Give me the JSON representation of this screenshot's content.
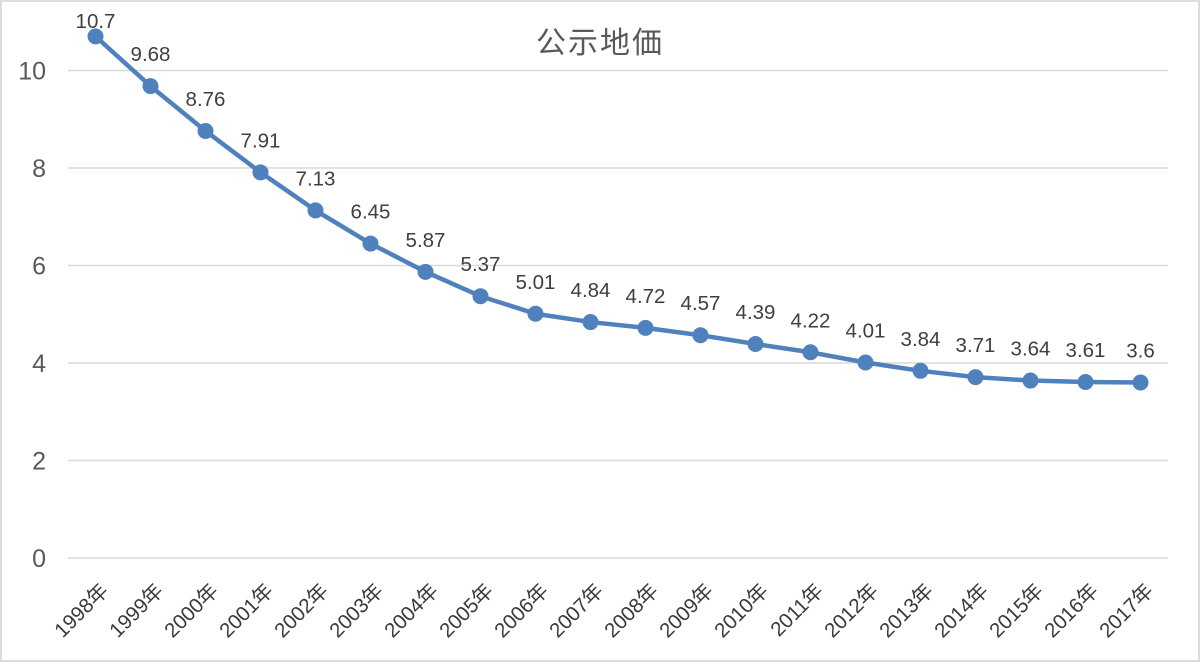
{
  "chart": {
    "title": "公示地価",
    "colors": {
      "line": "#4f81bd",
      "marker": "#4f81bd",
      "title": "#595959",
      "y_tick_label": "#595959",
      "x_tick_label": "#3a3a3a",
      "data_label": "#3f3f3f",
      "gridline": "#d9d9d9",
      "border": "#dcdcdc",
      "background": "#ffffff"
    }
  },
  "chart_data": {
    "type": "line",
    "title": "公示地価",
    "categories": [
      "1998年",
      "1999年",
      "2000年",
      "2001年",
      "2002年",
      "2003年",
      "2004年",
      "2005年",
      "2006年",
      "2007年",
      "2008年",
      "2009年",
      "2010年",
      "2011年",
      "2012年",
      "2013年",
      "2014年",
      "2015年",
      "2016年",
      "2017年"
    ],
    "values": [
      10.7,
      9.68,
      8.76,
      7.91,
      7.13,
      6.45,
      5.87,
      5.37,
      5.01,
      4.84,
      4.72,
      4.57,
      4.39,
      4.22,
      4.01,
      3.84,
      3.71,
      3.64,
      3.61,
      3.6
    ],
    "value_labels": [
      "10.7",
      "9.68",
      "8.76",
      "7.91",
      "7.13",
      "6.45",
      "5.87",
      "5.37",
      "5.01",
      "4.84",
      "4.72",
      "4.57",
      "4.39",
      "4.22",
      "4.01",
      "3.84",
      "3.71",
      "3.64",
      "3.61",
      "3.6"
    ],
    "xlabel": "",
    "ylabel": "",
    "ylim": [
      0,
      11.5
    ],
    "yticks": [
      0,
      2,
      4,
      6,
      8,
      10
    ],
    "grid": true,
    "legend": false,
    "markers": true,
    "data_labels": true,
    "x_tick_rotation": 45
  }
}
